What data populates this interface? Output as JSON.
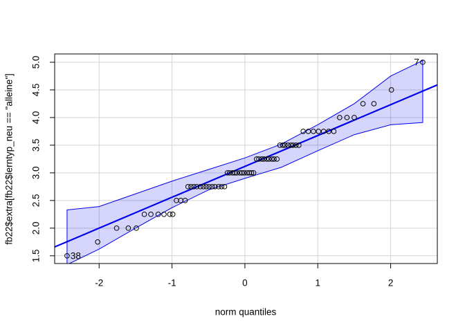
{
  "chart_data": {
    "type": "qq",
    "x_label": "norm quantiles",
    "y_label": "fb22$extra[fb22$lerntyp_neu == \"alleine\"]",
    "xlim": [
      -2.61,
      2.64
    ],
    "ylim": [
      1.36,
      5.15
    ],
    "xticks": [
      -2,
      -1,
      0,
      1,
      2
    ],
    "yticks": [
      {
        "value": 1.5,
        "label": "1.5"
      },
      {
        "value": 2,
        "label": "2.0"
      },
      {
        "value": 2.5,
        "label": "2.5"
      },
      {
        "value": 3,
        "label": "3.0"
      },
      {
        "value": 3.5,
        "label": "3.5"
      },
      {
        "value": 4,
        "label": "4.0"
      },
      {
        "value": 4.5,
        "label": "4.5"
      },
      {
        "value": 5,
        "label": "5.0"
      }
    ],
    "grid": true,
    "point_color": "#000000",
    "x": [
      -2.44,
      -2.02,
      -1.76,
      -1.6,
      -1.49,
      -1.38,
      -1.29,
      -1.19,
      -1.11,
      -1.03,
      -0.99,
      -0.94,
      -0.88,
      -0.82,
      -0.78,
      -0.74,
      -0.7,
      -0.66,
      -0.61,
      -0.57,
      -0.53,
      -0.49,
      -0.45,
      -0.41,
      -0.36,
      -0.32,
      -0.28,
      -0.24,
      -0.21,
      -0.17,
      -0.14,
      -0.11,
      -0.07,
      -0.04,
      -0.01,
      0.03,
      0.06,
      0.09,
      0.12,
      0.16,
      0.19,
      0.23,
      0.26,
      0.3,
      0.33,
      0.37,
      0.4,
      0.44,
      0.48,
      0.52,
      0.55,
      0.59,
      0.63,
      0.66,
      0.7,
      0.74,
      0.8,
      0.87,
      0.94,
      1.01,
      1.08,
      1.15,
      1.22,
      1.3,
      1.4,
      1.5,
      1.62,
      1.77,
      2.01,
      2.44
    ],
    "y": [
      1.5,
      1.75,
      2,
      2,
      2,
      2.25,
      2.25,
      2.25,
      2.25,
      2.25,
      2.25,
      2.5,
      2.5,
      2.5,
      2.75,
      2.75,
      2.75,
      2.75,
      2.75,
      2.75,
      2.75,
      2.75,
      2.75,
      2.75,
      2.75,
      2.75,
      2.75,
      3,
      3,
      3,
      3,
      3,
      3,
      3,
      3,
      3,
      3,
      3,
      3,
      3.25,
      3.25,
      3.25,
      3.25,
      3.25,
      3.25,
      3.25,
      3.25,
      3.25,
      3.5,
      3.5,
      3.5,
      3.5,
      3.5,
      3.5,
      3.5,
      3.5,
      3.75,
      3.75,
      3.75,
      3.75,
      3.75,
      3.75,
      3.75,
      4,
      4,
      4,
      4.25,
      4.25,
      4.5,
      5
    ],
    "reference_line": {
      "color": "#0000ee",
      "x": [
        -2.61,
        2.64
      ],
      "y": [
        1.66,
        4.59
      ]
    },
    "envelope": {
      "color": "#0000ee",
      "x": [
        -2.44,
        -2,
        -1.5,
        -1,
        -0.5,
        0,
        0.5,
        1,
        1.5,
        2,
        2.44
      ],
      "upper": [
        2.33,
        2.39,
        2.62,
        2.85,
        3.06,
        3.27,
        3.52,
        3.87,
        4.25,
        4.75,
        5.03
      ],
      "lower": [
        1.34,
        1.62,
        2,
        2.37,
        2.69,
        2.9,
        3.1,
        3.4,
        3.69,
        3.87,
        3.91
      ]
    },
    "point_labels": [
      {
        "text": "7",
        "x": 2.44,
        "y": 5
      },
      {
        "text": "38",
        "x": -2.44,
        "y": 1.5
      }
    ]
  }
}
